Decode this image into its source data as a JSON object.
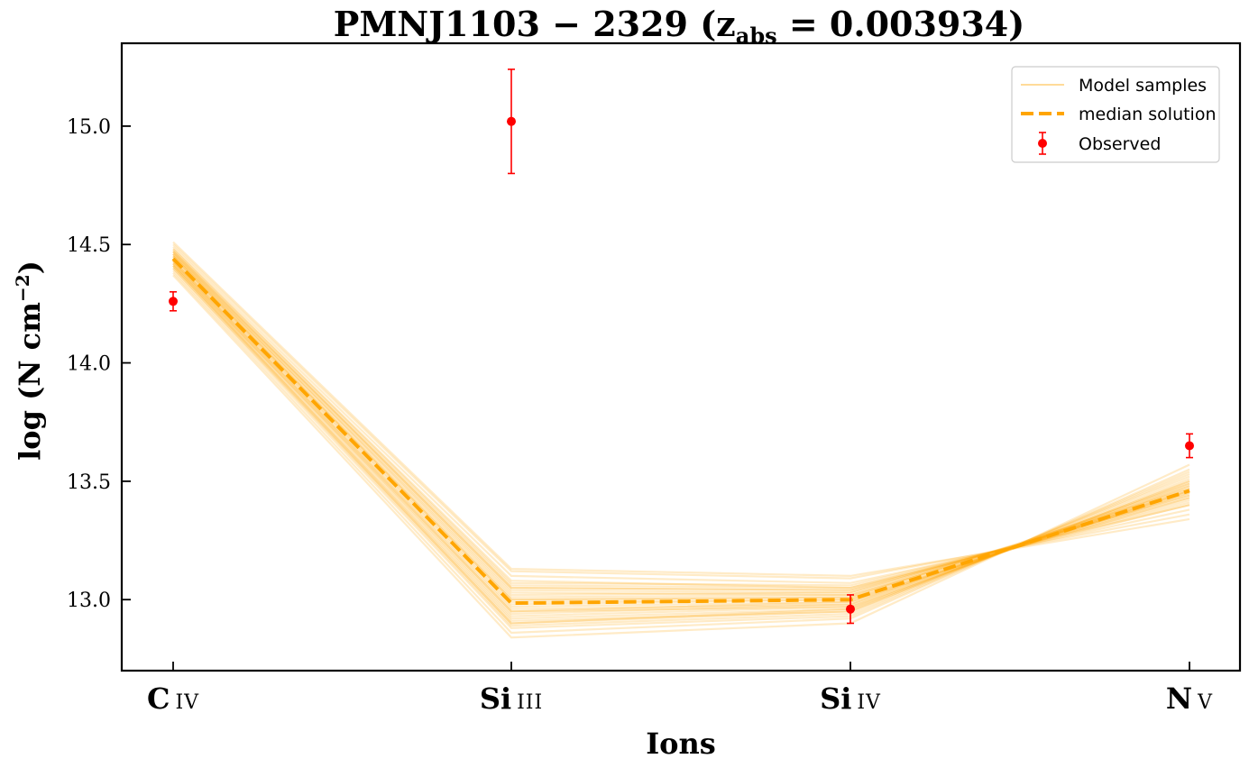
{
  "chart_data": {
    "type": "line",
    "title": {
      "main": "PMNJ1103 − 2329 (z",
      "subscript": "abs",
      "tail": " = 0.003934)"
    },
    "xlabel": "Ions",
    "ylabel": {
      "main": "log (N cm",
      "superscript": "−2",
      "tail": ")"
    },
    "categories": [
      {
        "element": "C",
        "ion": "IV"
      },
      {
        "element": "Si",
        "ion": "III"
      },
      {
        "element": "Si",
        "ion": "IV"
      },
      {
        "element": "N",
        "ion": "V"
      }
    ],
    "ylim": [
      12.7,
      15.35
    ],
    "yticks": [
      "13.0",
      "13.5",
      "14.0",
      "14.5",
      "15.0"
    ],
    "series": [
      {
        "name": "median solution",
        "style": "dashed",
        "color": "#FFA500",
        "values": [
          14.44,
          12.985,
          13.0,
          13.46
        ]
      },
      {
        "name": "Observed",
        "style": "errorbar",
        "color": "#FF0000",
        "values": [
          14.26,
          15.02,
          12.96,
          13.65
        ],
        "errors": [
          0.04,
          0.22,
          0.06,
          0.05
        ]
      }
    ],
    "model_samples": {
      "name": "Model samples",
      "color": "#FFA500",
      "lines": [
        [
          14.46,
          13.02,
          13.03,
          13.44
        ],
        [
          14.42,
          12.95,
          12.97,
          13.48
        ],
        [
          14.48,
          13.08,
          13.05,
          13.4
        ],
        [
          14.4,
          12.9,
          12.95,
          13.52
        ],
        [
          14.45,
          13.0,
          13.01,
          13.46
        ],
        [
          14.43,
          12.97,
          12.99,
          13.47
        ],
        [
          14.47,
          13.05,
          13.04,
          13.42
        ],
        [
          14.41,
          12.92,
          12.96,
          13.5
        ],
        [
          14.5,
          13.12,
          13.09,
          13.36
        ],
        [
          14.38,
          12.86,
          12.92,
          13.55
        ],
        [
          14.44,
          12.99,
          13.0,
          13.45
        ],
        [
          14.46,
          13.03,
          13.02,
          13.43
        ],
        [
          14.42,
          12.94,
          12.98,
          13.49
        ],
        [
          14.49,
          13.1,
          13.07,
          13.38
        ],
        [
          14.39,
          12.88,
          12.93,
          13.54
        ],
        [
          14.45,
          13.01,
          13.02,
          13.45
        ],
        [
          14.43,
          12.96,
          12.98,
          13.48
        ],
        [
          14.47,
          13.06,
          13.05,
          13.41
        ],
        [
          14.41,
          12.91,
          12.95,
          13.51
        ],
        [
          14.44,
          12.98,
          13.0,
          13.46
        ],
        [
          14.48,
          13.07,
          13.06,
          13.4
        ],
        [
          14.4,
          12.89,
          12.94,
          13.53
        ],
        [
          14.46,
          13.04,
          13.03,
          13.44
        ],
        [
          14.42,
          12.93,
          12.97,
          13.49
        ],
        [
          14.51,
          13.13,
          13.1,
          13.34
        ],
        [
          14.37,
          12.84,
          12.9,
          13.57
        ],
        [
          14.45,
          13.0,
          13.01,
          13.47
        ],
        [
          14.43,
          12.95,
          12.99,
          13.46
        ],
        [
          14.47,
          13.05,
          13.04,
          13.43
        ],
        [
          14.41,
          12.9,
          12.96,
          13.5
        ]
      ]
    },
    "legend": {
      "position": "upper-right",
      "entries": [
        "Model samples",
        "median solution",
        "Observed"
      ]
    }
  }
}
